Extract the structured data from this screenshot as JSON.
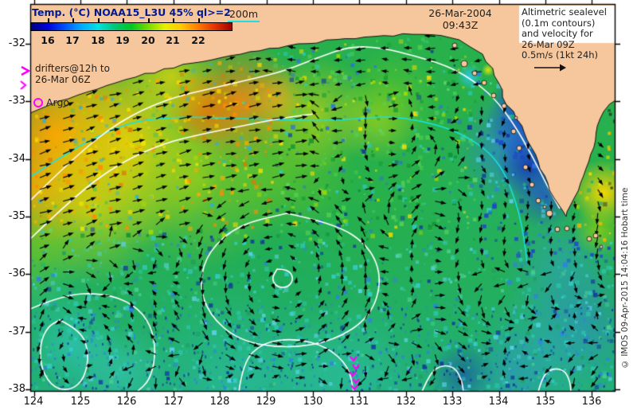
{
  "colorbar": {
    "title": "Temp. (°C) NOAA15_L3U 45% ql>=2",
    "ticks": [
      "16",
      "17",
      "18",
      "19",
      "20",
      "21",
      "22"
    ],
    "gradient": [
      "#000080",
      "#0000e0",
      "#0050ff",
      "#00aaff",
      "#00e0e0",
      "#00c878",
      "#00c81e",
      "#78dc00",
      "#e6f000",
      "#ffc800",
      "#ff7800",
      "#e63200",
      "#a00000"
    ]
  },
  "labels": {
    "isobath": "200m",
    "date": "26-Mar-2004",
    "time": "09:43Z",
    "altimetry": [
      "Altimetric sealevel",
      "(0.1m contours)",
      "and velocity for",
      "26-Mar 09Z",
      "0.5m/s (1kt 24h)"
    ],
    "drifters_line1": "drifters@12h to",
    "drifters_line2": "26-Mar 06Z",
    "argo": "Argo",
    "copyright": "© IMOS 09-Apr-2015 14:04:16 Hobart time"
  },
  "axes": {
    "lat": [
      "-32",
      "-33",
      "-34",
      "-35",
      "-36",
      "-37",
      "-38"
    ],
    "lon": [
      "124",
      "125",
      "126",
      "127",
      "128",
      "129",
      "130",
      "131",
      "132",
      "133",
      "134",
      "135",
      "136"
    ]
  },
  "colors": {
    "land": "#f6c79c",
    "ocean_base": "#27b04b",
    "contour": "#ffffff",
    "isobath": "#17e3e3",
    "tracks": "#ff00ff",
    "frame": "#000000",
    "title_text": "#001a8f",
    "body_text": "#222222"
  }
}
